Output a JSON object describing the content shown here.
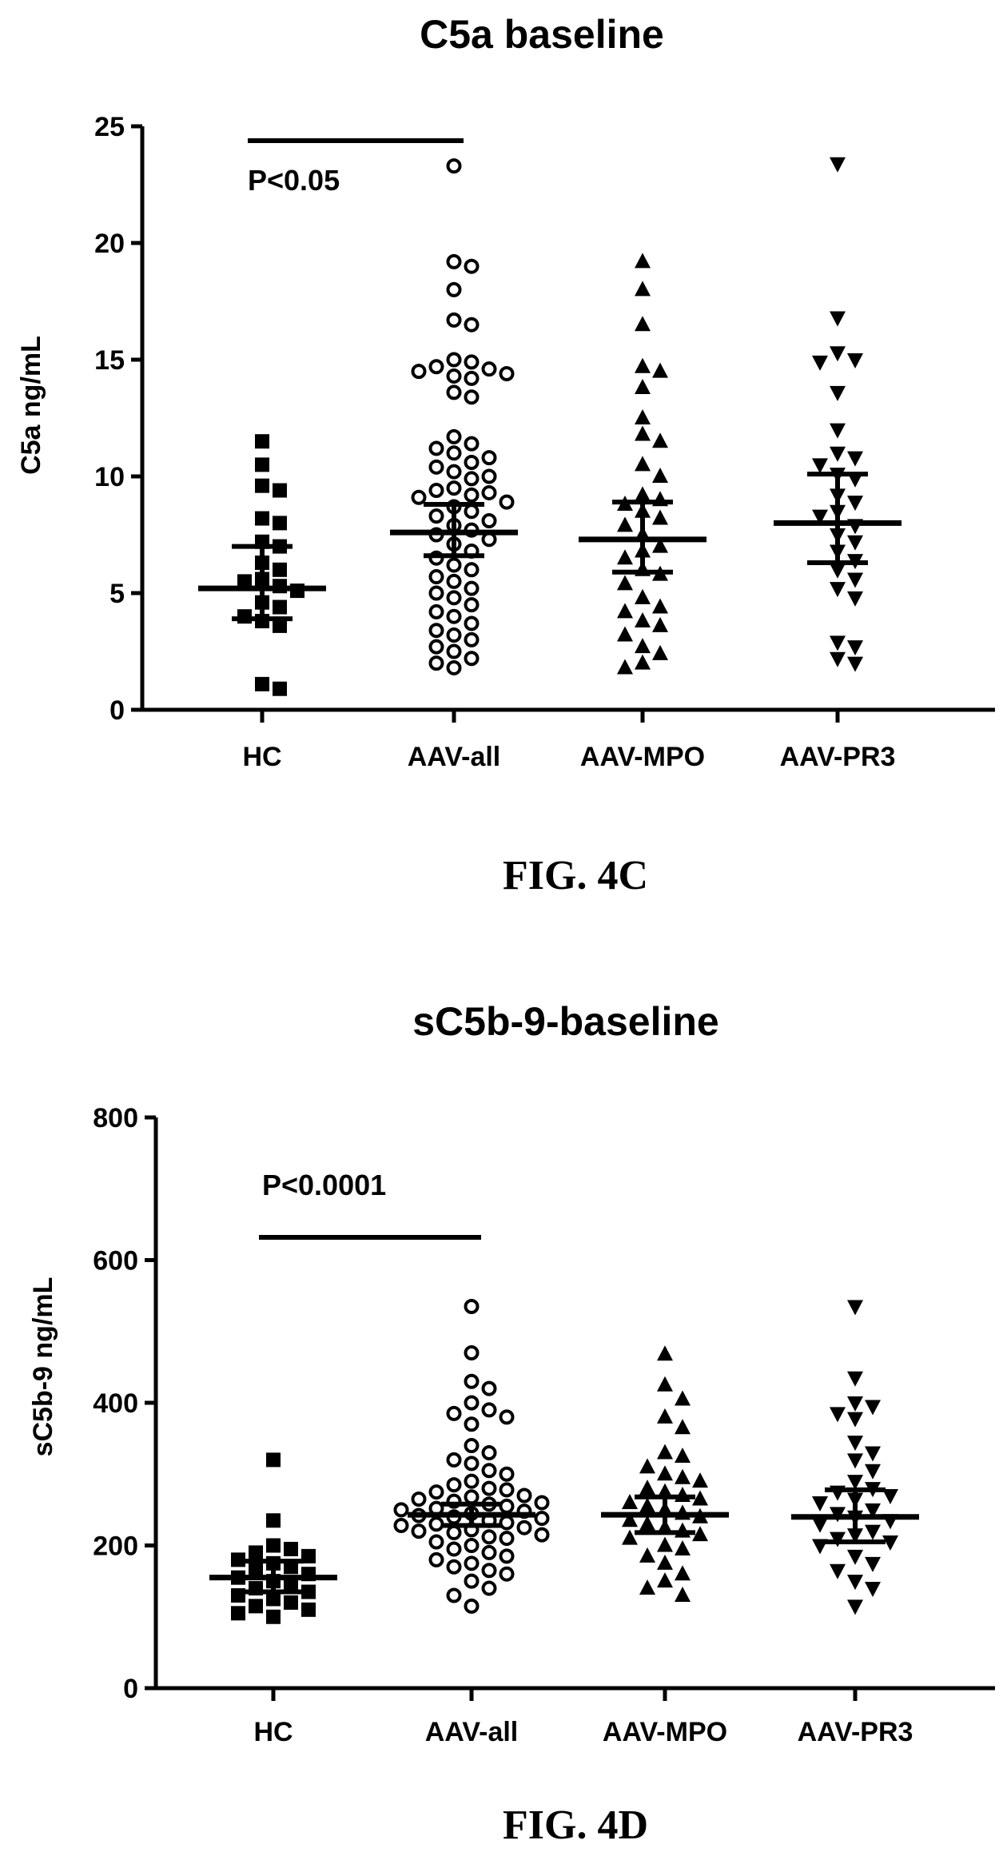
{
  "chart_data": [
    {
      "type": "scatter",
      "title": "C5a baseline",
      "ylabel": "C5a ng/mL",
      "xlabel": "",
      "ylim": [
        0,
        25
      ],
      "yticks": [
        "0",
        "5",
        "10",
        "15",
        "20",
        "25"
      ],
      "figure_label": "FIG. 4C",
      "categories": [
        "HC",
        "AAV-all",
        "AAV-MPO",
        "AAV-PR3"
      ],
      "annotation": {
        "text": "P<0.05",
        "from": "HC",
        "to": "AAV-all",
        "y": 24.4
      },
      "series": [
        {
          "marker": "square",
          "values": [
            11.5,
            10.5,
            9.6,
            9.4,
            8.2,
            8.0,
            7.2,
            7.0,
            6.3,
            6.0,
            5.6,
            5.5,
            5.3,
            5.1,
            4.6,
            4.4,
            4.0,
            3.8,
            3.6,
            1.1,
            0.9
          ],
          "median": 5.2,
          "ci_low": 3.9,
          "ci_high": 7.0
        },
        {
          "marker": "open-circle",
          "values": [
            23.3,
            19.2,
            19.0,
            18.0,
            16.7,
            16.5,
            15.0,
            14.9,
            14.7,
            14.6,
            14.5,
            14.4,
            14.3,
            14.2,
            13.6,
            13.4,
            11.7,
            11.4,
            11.2,
            11.0,
            10.8,
            10.6,
            10.4,
            10.2,
            10.0,
            9.9,
            9.5,
            9.4,
            9.3,
            9.2,
            9.1,
            8.9,
            8.7,
            8.5,
            8.3,
            8.1,
            7.9,
            7.7,
            7.5,
            7.3,
            7.1,
            6.8,
            6.5,
            6.2,
            6.0,
            5.7,
            5.5,
            5.2,
            5.0,
            4.8,
            4.5,
            4.2,
            4.0,
            3.7,
            3.4,
            3.2,
            3.0,
            2.7,
            2.5,
            2.2,
            2.0,
            1.8
          ],
          "median": 7.6,
          "ci_low": 6.6,
          "ci_high": 8.8
        },
        {
          "marker": "triangle-up",
          "values": [
            19.2,
            18.0,
            16.5,
            14.7,
            14.5,
            13.8,
            12.5,
            11.8,
            11.5,
            10.5,
            10.0,
            9.2,
            9.0,
            8.8,
            8.5,
            8.2,
            7.9,
            7.5,
            7.0,
            6.8,
            6.5,
            6.0,
            5.8,
            5.4,
            4.8,
            4.4,
            4.2,
            3.8,
            3.6,
            3.2,
            2.7,
            2.4,
            2.0,
            1.8
          ],
          "median": 7.3,
          "ci_low": 5.9,
          "ci_high": 8.9
        },
        {
          "marker": "triangle-down",
          "values": [
            23.4,
            16.8,
            15.3,
            15.0,
            14.9,
            13.6,
            12.0,
            11.0,
            10.8,
            10.5,
            10.1,
            9.9,
            9.2,
            8.9,
            8.5,
            8.3,
            7.9,
            7.5,
            7.2,
            6.8,
            6.4,
            6.0,
            5.6,
            5.2,
            4.8,
            2.9,
            2.7,
            2.2,
            2.0
          ],
          "median": 8.0,
          "ci_low": 6.3,
          "ci_high": 10.1
        }
      ]
    },
    {
      "type": "scatter",
      "title": "sC5b-9-baseline",
      "ylabel": "sC5b-9 ng/mL",
      "xlabel": "",
      "ylim": [
        0,
        800
      ],
      "yticks": [
        "0",
        "200",
        "400",
        "600",
        "800"
      ],
      "figure_label": "FIG. 4D",
      "categories": [
        "HC",
        "AAV-all",
        "AAV-MPO",
        "AAV-PR3"
      ],
      "annotation": {
        "text": "P<0.0001",
        "from": "HC",
        "to": "AAV-all",
        "y": 623
      },
      "series": [
        {
          "marker": "square",
          "values": [
            320,
            235,
            200,
            195,
            190,
            185,
            180,
            175,
            170,
            165,
            160,
            155,
            150,
            145,
            140,
            135,
            130,
            125,
            120,
            115,
            110,
            105,
            100
          ],
          "median": 155,
          "ci_low": 135,
          "ci_high": 178
        },
        {
          "marker": "open-circle",
          "values": [
            535,
            470,
            430,
            420,
            400,
            390,
            385,
            380,
            370,
            340,
            330,
            320,
            315,
            305,
            300,
            290,
            285,
            280,
            278,
            275,
            270,
            268,
            265,
            262,
            260,
            258,
            255,
            252,
            250,
            248,
            245,
            242,
            240,
            238,
            235,
            232,
            230,
            228,
            225,
            222,
            220,
            218,
            215,
            212,
            210,
            205,
            200,
            195,
            190,
            185,
            180,
            175,
            170,
            165,
            160,
            150,
            140,
            130,
            115
          ],
          "median": 243,
          "ci_low": 228,
          "ci_high": 258
        },
        {
          "marker": "triangle-up",
          "values": [
            468,
            425,
            405,
            380,
            365,
            330,
            325,
            310,
            300,
            295,
            290,
            280,
            275,
            270,
            265,
            260,
            255,
            250,
            245,
            240,
            235,
            230,
            225,
            220,
            215,
            210,
            200,
            195,
            185,
            175,
            160,
            150,
            140,
            130
          ],
          "median": 243,
          "ci_low": 218,
          "ci_high": 268
        },
        {
          "marker": "triangle-down",
          "values": [
            535,
            435,
            400,
            395,
            385,
            378,
            345,
            330,
            320,
            305,
            290,
            280,
            275,
            270,
            265,
            260,
            250,
            245,
            240,
            235,
            230,
            220,
            215,
            210,
            205,
            200,
            185,
            175,
            165,
            150,
            140,
            115
          ],
          "median": 240,
          "ci_low": 205,
          "ci_high": 278
        }
      ]
    }
  ]
}
